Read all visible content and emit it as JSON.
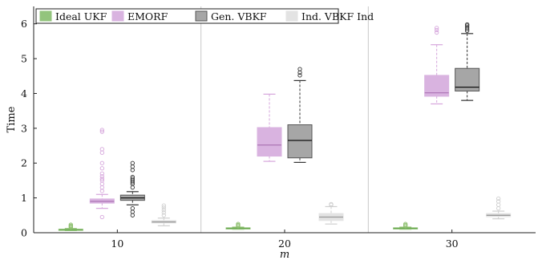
{
  "chart_data": {
    "type": "boxplot",
    "xlabel": "m",
    "ylabel": "Time",
    "categories": [
      "10",
      "20",
      "30"
    ],
    "ylim": [
      0,
      6.5
    ],
    "yticks": [
      0,
      1,
      2,
      3,
      4,
      5,
      6
    ],
    "grid": "vertical separators between groups",
    "legend_position": "top-left",
    "series": [
      {
        "name": "Ideal UKF",
        "color": "#93c47d",
        "boxes": [
          {
            "min": 0.06,
            "q1": 0.08,
            "median": 0.09,
            "q3": 0.1,
            "max": 0.12,
            "outliers": [
              0.15,
              0.18,
              0.2,
              0.23
            ]
          },
          {
            "min": 0.1,
            "q1": 0.12,
            "median": 0.13,
            "q3": 0.14,
            "max": 0.16,
            "outliers": [
              0.19,
              0.22,
              0.25
            ]
          },
          {
            "min": 0.1,
            "q1": 0.12,
            "median": 0.13,
            "q3": 0.14,
            "max": 0.16,
            "outliers": [
              0.19,
              0.22,
              0.25
            ]
          }
        ]
      },
      {
        "name": "EMORF",
        "color": "#d9b3e0",
        "boxes": [
          {
            "min": 0.7,
            "q1": 0.85,
            "median": 0.9,
            "q3": 0.97,
            "max": 1.1,
            "outliers": [
              0.45,
              1.2,
              1.3,
              1.4,
              1.5,
              1.55,
              1.62,
              1.7,
              1.85,
              2.0,
              2.3,
              2.4,
              2.9,
              2.95
            ]
          },
          {
            "min": 2.05,
            "q1": 2.2,
            "median": 2.52,
            "q3": 3.02,
            "max": 3.98,
            "outliers": []
          },
          {
            "min": 3.7,
            "q1": 3.92,
            "median": 4.02,
            "q3": 4.52,
            "max": 5.4,
            "outliers": [
              5.75,
              5.82,
              5.88
            ]
          }
        ]
      },
      {
        "name": "Gen. VBKF",
        "color": "#a6a6a6",
        "boxes": [
          {
            "min": 0.8,
            "q1": 0.93,
            "median": 1.0,
            "q3": 1.08,
            "max": 1.18,
            "outliers": [
              0.5,
              0.6,
              0.7,
              1.3,
              1.4,
              1.45,
              1.5,
              1.55,
              1.6,
              1.8,
              1.9,
              2.0
            ]
          },
          {
            "min": 2.02,
            "q1": 2.15,
            "median": 2.65,
            "q3": 3.1,
            "max": 4.37,
            "outliers": [
              4.52,
              4.6,
              4.7
            ]
          },
          {
            "min": 3.8,
            "q1": 4.07,
            "median": 4.18,
            "q3": 4.72,
            "max": 5.72,
            "outliers": [
              5.8,
              5.85,
              5.9,
              5.95,
              5.98
            ]
          }
        ]
      },
      {
        "name": "Ind. VBKF Ind",
        "color": "#e3e3e3",
        "boxes": [
          {
            "min": 0.2,
            "q1": 0.28,
            "median": 0.31,
            "q3": 0.35,
            "max": 0.42,
            "outliers": [
              0.5,
              0.58,
              0.65,
              0.72,
              0.78
            ]
          },
          {
            "min": 0.25,
            "q1": 0.35,
            "median": 0.45,
            "q3": 0.55,
            "max": 0.75,
            "outliers": [
              0.8,
              0.82
            ]
          },
          {
            "min": 0.4,
            "q1": 0.46,
            "median": 0.5,
            "q3": 0.55,
            "max": 0.62,
            "outliers": [
              0.7,
              0.8,
              0.9,
              0.98
            ]
          }
        ]
      }
    ]
  }
}
